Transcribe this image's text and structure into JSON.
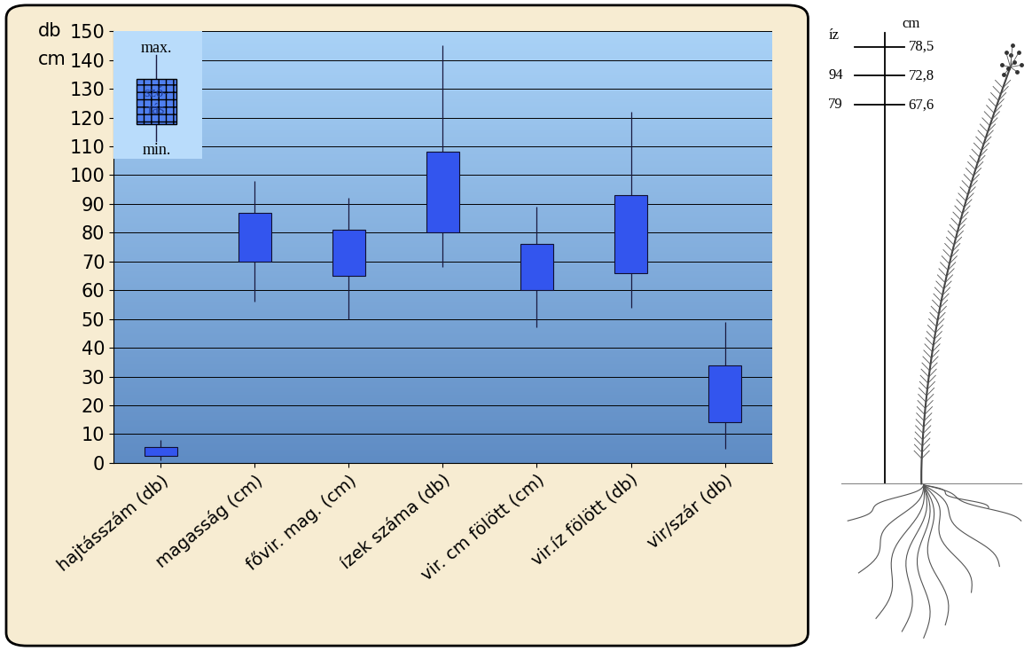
{
  "chart_data": {
    "type": "box",
    "categories": [
      "hajtásszám (db)",
      "magasság (cm)",
      "fővir. mag. (cm)",
      "ízek száma (db)",
      "vir. cm fölött (cm)",
      "vir.íz fölött (db)",
      "vir/szár (db)"
    ],
    "min": [
      1,
      56,
      50,
      68,
      47,
      54,
      5
    ],
    "box_low": [
      2.5,
      70,
      65,
      80,
      60,
      66,
      14
    ],
    "box_high": [
      5.5,
      87,
      81,
      108,
      76,
      93,
      34
    ],
    "max": [
      8,
      98,
      92,
      145,
      89,
      122,
      49
    ],
    "color": "#3355ee",
    "ylim": [
      0,
      150
    ],
    "yticks": [
      0,
      10,
      20,
      30,
      40,
      50,
      60,
      70,
      80,
      90,
      100,
      110,
      120,
      130,
      140,
      150
    ],
    "grid": true,
    "y_units": [
      "db",
      "cm"
    ],
    "key": {
      "max": "max.",
      "box": "szó-\nrás",
      "min": "min."
    }
  },
  "drawing": {
    "scale_header": [
      "íz",
      "cm"
    ],
    "scale_rows": [
      [
        null,
        "78,5"
      ],
      [
        "94",
        "72,8"
      ],
      [
        "79",
        "67,6"
      ]
    ]
  }
}
